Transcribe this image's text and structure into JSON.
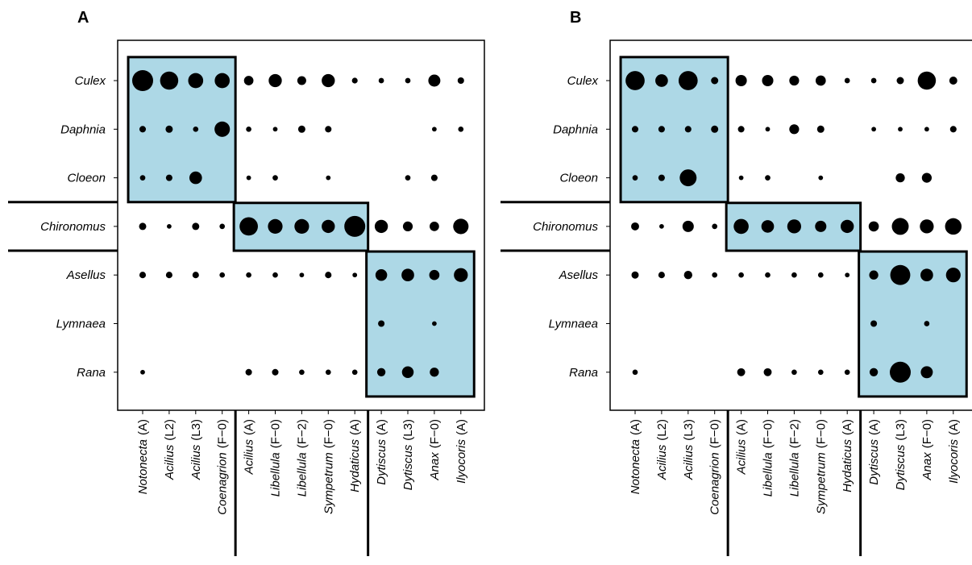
{
  "chart_data": [
    {
      "type": "bubble-matrix",
      "panel": "A",
      "rows": [
        "Culex",
        "Daphnia",
        "Cloeon",
        "Chironomus",
        "Asellus",
        "Lymnaea",
        "Rana"
      ],
      "columns": [
        {
          "genus": "Notonecta",
          "stage": "(A)"
        },
        {
          "genus": "Acilius",
          "stage": "(L2)"
        },
        {
          "genus": "Acilius",
          "stage": "(L3)"
        },
        {
          "genus": "Coenagrion",
          "stage": "(F−0)"
        },
        {
          "genus": "Acilius",
          "stage": "(A)"
        },
        {
          "genus": "Libellula",
          "stage": "(F−0)"
        },
        {
          "genus": "Libellula",
          "stage": "(F−2)"
        },
        {
          "genus": "Sympetrum",
          "stage": "(F−0)"
        },
        {
          "genus": "Hydaticus",
          "stage": "(A)"
        },
        {
          "genus": "Dytiscus",
          "stage": "(A)"
        },
        {
          "genus": "Dytiscus",
          "stage": "(L3)"
        },
        {
          "genus": "Anax",
          "stage": "(F−0)"
        },
        {
          "genus": "Ilyocoris",
          "stage": "(A)"
        }
      ],
      "values": [
        [
          1.0,
          0.85,
          0.68,
          0.68,
          0.38,
          0.58,
          0.35,
          0.58,
          0.18,
          0.16,
          0.16,
          0.52,
          0.22
        ],
        [
          0.22,
          0.26,
          0.16,
          0.7,
          0.16,
          0.12,
          0.26,
          0.22,
          0,
          0,
          0,
          0.12,
          0.16
        ],
        [
          0.16,
          0.22,
          0.55,
          0,
          0.12,
          0.16,
          0,
          0.12,
          0,
          0,
          0.16,
          0.22,
          0
        ],
        [
          0.26,
          0.12,
          0.26,
          0.16,
          0.86,
          0.66,
          0.66,
          0.58,
          1.0,
          0.58,
          0.4,
          0.38,
          0.7
        ],
        [
          0.22,
          0.22,
          0.22,
          0.16,
          0.16,
          0.16,
          0.12,
          0.22,
          0.12,
          0.5,
          0.55,
          0.42,
          0.62
        ],
        [
          0,
          0,
          0,
          0,
          0,
          0,
          0,
          0,
          0,
          0.22,
          0,
          0.12,
          0
        ],
        [
          0.12,
          0,
          0,
          0,
          0.22,
          0.22,
          0.16,
          0.16,
          0.16,
          0.32,
          0.5,
          0.36,
          0
        ]
      ],
      "modules": [
        {
          "rows": [
            0,
            2
          ],
          "cols": [
            0,
            3
          ]
        },
        {
          "rows": [
            3,
            3
          ],
          "cols": [
            4,
            8
          ]
        },
        {
          "rows": [
            4,
            6
          ],
          "cols": [
            9,
            12
          ]
        }
      ],
      "row_separators_after": [
        2,
        3
      ],
      "col_separators_after": [
        3,
        8
      ],
      "module_color": "#add8e6",
      "dot_color": "#000000"
    },
    {
      "type": "bubble-matrix",
      "panel": "B",
      "rows": [
        "Culex",
        "Daphnia",
        "Cloeon",
        "Chironomus",
        "Asellus",
        "Lymnaea",
        "Rana"
      ],
      "columns": [
        {
          "genus": "Notonecta",
          "stage": "(A)"
        },
        {
          "genus": "Acilius",
          "stage": "(L2)"
        },
        {
          "genus": "Acilius",
          "stage": "(L3)"
        },
        {
          "genus": "Coenagrion",
          "stage": "(F−0)"
        },
        {
          "genus": "Acilius",
          "stage": "(A)"
        },
        {
          "genus": "Libellula",
          "stage": "(F−0)"
        },
        {
          "genus": "Libellula",
          "stage": "(F−2)"
        },
        {
          "genus": "Sympetrum",
          "stage": "(F−0)"
        },
        {
          "genus": "Hydaticus",
          "stage": "(A)"
        },
        {
          "genus": "Dytiscus",
          "stage": "(A)"
        },
        {
          "genus": "Dytiscus",
          "stage": "(L3)"
        },
        {
          "genus": "Anax",
          "stage": "(F−0)"
        },
        {
          "genus": "Ilyocoris",
          "stage": "(A)"
        }
      ],
      "values": [
        [
          0.9,
          0.55,
          0.9,
          0.26,
          0.48,
          0.48,
          0.4,
          0.42,
          0.16,
          0.16,
          0.26,
          0.85,
          0.3
        ],
        [
          0.22,
          0.22,
          0.22,
          0.26,
          0.22,
          0.12,
          0.4,
          0.26,
          0,
          0.12,
          0.12,
          0.12,
          0.22
        ],
        [
          0.16,
          0.22,
          0.78,
          0,
          0.12,
          0.16,
          0,
          0.12,
          0,
          0,
          0.36,
          0.4,
          0
        ],
        [
          0.3,
          0.12,
          0.48,
          0.16,
          0.68,
          0.55,
          0.62,
          0.48,
          0.58,
          0.42,
          0.78,
          0.62,
          0.76
        ],
        [
          0.26,
          0.22,
          0.32,
          0.16,
          0.16,
          0.16,
          0.16,
          0.16,
          0.12,
          0.36,
          0.95,
          0.55,
          0.66
        ],
        [
          0,
          0,
          0,
          0,
          0,
          0,
          0,
          0,
          0,
          0.22,
          0,
          0.16,
          0
        ],
        [
          0.16,
          0,
          0,
          0,
          0.3,
          0.3,
          0.16,
          0.16,
          0.16,
          0.32,
          1.0,
          0.52,
          0
        ]
      ],
      "modules": [
        {
          "rows": [
            0,
            2
          ],
          "cols": [
            0,
            3
          ]
        },
        {
          "rows": [
            3,
            3
          ],
          "cols": [
            4,
            8
          ]
        },
        {
          "rows": [
            4,
            6
          ],
          "cols": [
            9,
            12
          ]
        }
      ],
      "row_separators_after": [
        2,
        3
      ],
      "col_separators_after": [
        3,
        8
      ],
      "module_color": "#add8e6",
      "dot_color": "#000000"
    }
  ]
}
